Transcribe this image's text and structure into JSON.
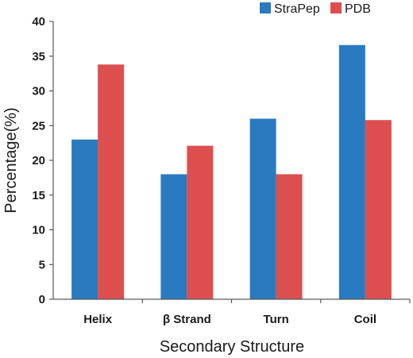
{
  "chart_data": {
    "type": "bar",
    "categories": [
      "Helix",
      "β Strand",
      "Turn",
      "Coil"
    ],
    "series": [
      {
        "name": "StraPep",
        "values": [
          23.0,
          18.0,
          26.0,
          36.6
        ],
        "color": "#2a7ac0"
      },
      {
        "name": "PDB",
        "values": [
          33.8,
          22.1,
          18.0,
          25.8
        ],
        "color": "#dd4f4f"
      }
    ],
    "title": "",
    "xlabel": "Secondary Structure",
    "ylabel": "Percentage(%)",
    "ylim": [
      0,
      40
    ],
    "yticks": [
      "0",
      "5",
      "10",
      "15",
      "20",
      "25",
      "30",
      "35",
      "40"
    ],
    "grid": false,
    "legend_position": "top-right"
  }
}
